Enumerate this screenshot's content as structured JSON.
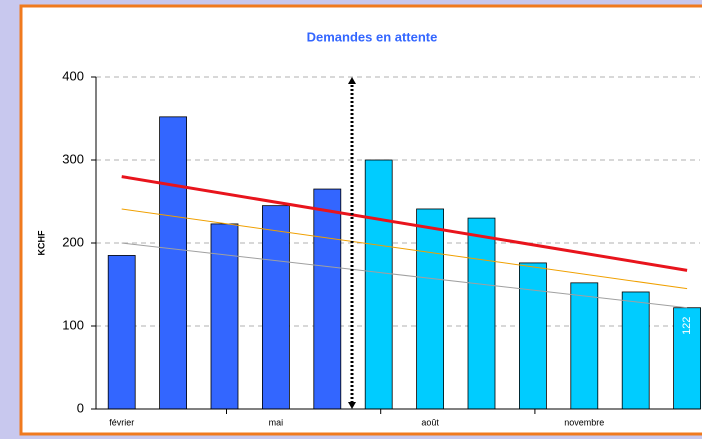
{
  "chart_data": {
    "type": "bar",
    "title": "Demandes en attente",
    "y_label": "KCHF",
    "categories": [
      "février",
      null,
      null,
      "mai",
      null,
      null,
      "août",
      null,
      null,
      "novembre",
      null,
      null
    ],
    "values": [
      185,
      352,
      223,
      245,
      265,
      300,
      241,
      230,
      176,
      152,
      141,
      122
    ],
    "colors": [
      "#3366ff",
      "#3366ff",
      "#3366ff",
      "#3366ff",
      "#3366ff",
      "#00ccff",
      "#00ccff",
      "#00ccff",
      "#00ccff",
      "#00ccff",
      "#00ccff",
      "#00ccff"
    ],
    "trend_lines": [
      {
        "color": "#e8141c",
        "start": 280,
        "end": 167
      },
      {
        "color": "#f0a000",
        "start": 241,
        "end": 145
      },
      {
        "color": "#a0a0a0",
        "start": 200,
        "end": 122
      }
    ],
    "data_labels": "last",
    "ylim": [
      0,
      400
    ],
    "yticks": [
      0,
      100,
      200,
      300,
      400
    ],
    "grid": true
  }
}
